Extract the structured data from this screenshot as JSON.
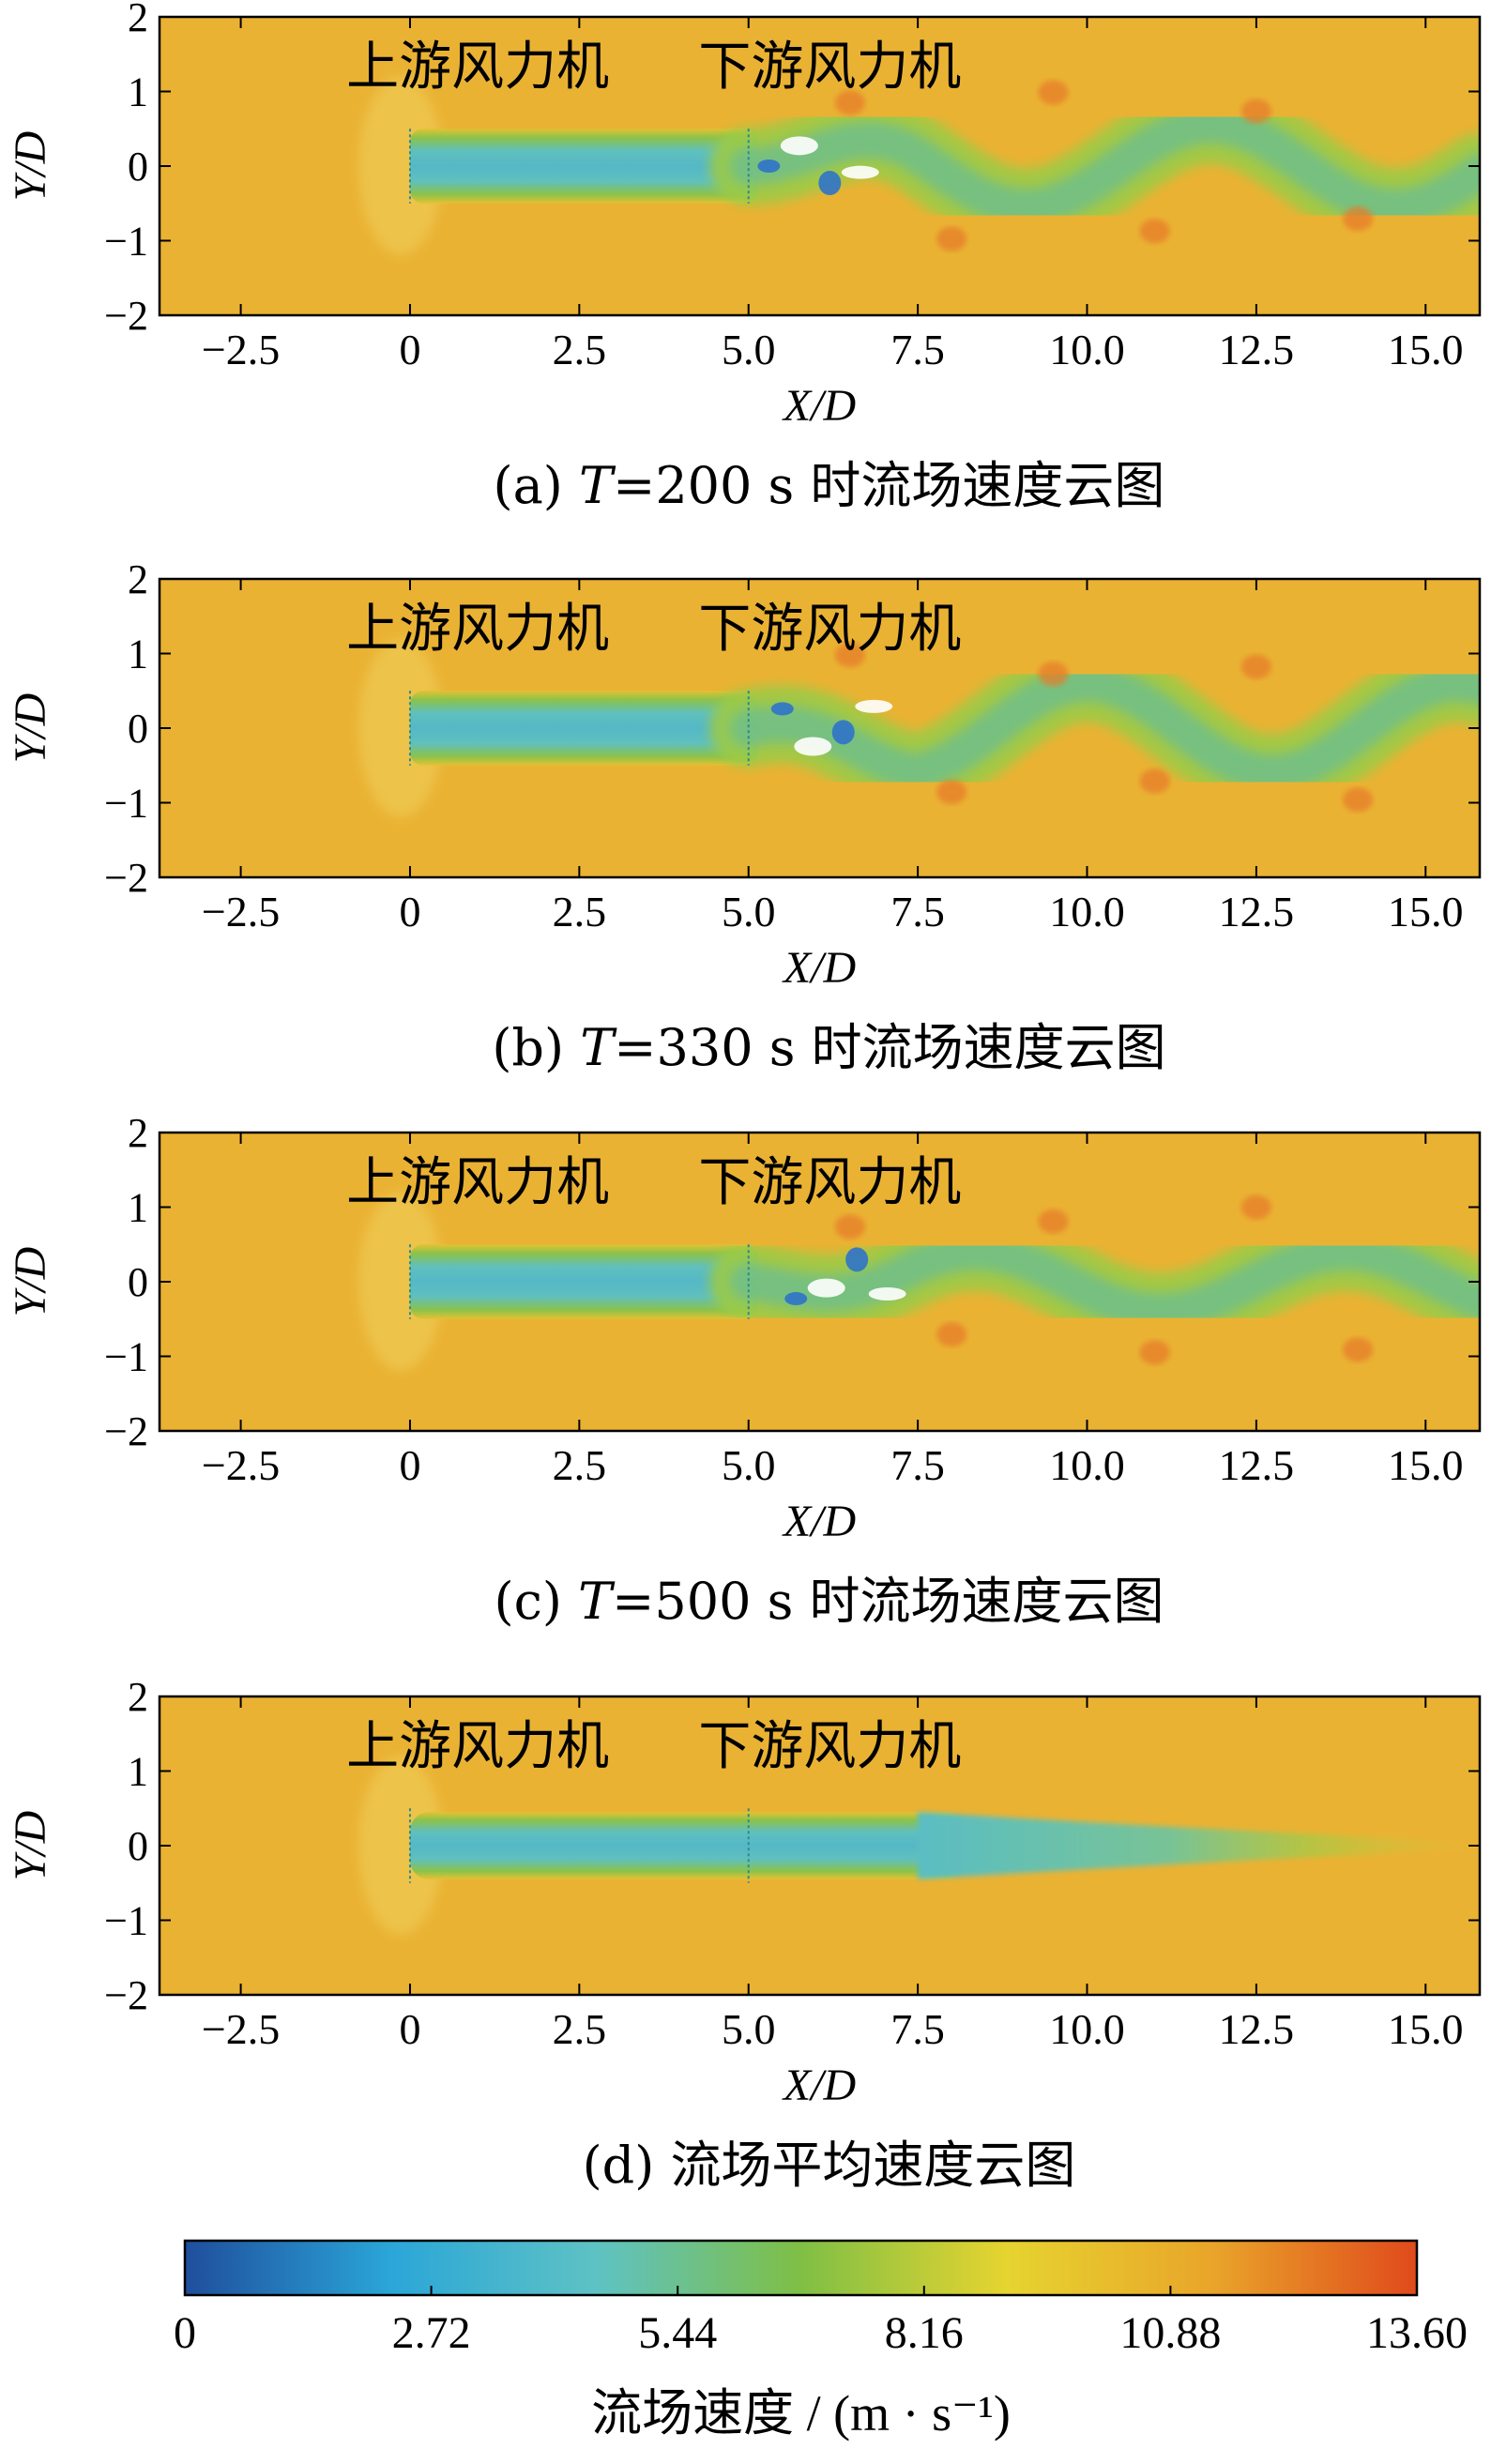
{
  "chart_data": [
    {
      "type": "heatmap",
      "panel": "(a)",
      "caption_prefix": "(a)",
      "caption_var": "T",
      "caption_rest": "=200 s 时流场速度云图",
      "xlabel": "X/D",
      "ylabel": "Y/D",
      "xlim": [
        -3.7,
        15.8
      ],
      "ylim": [
        -2,
        2
      ],
      "xticks": [
        "−2.5",
        "0",
        "2.5",
        "5.0",
        "7.5",
        "10.0",
        "12.5",
        "15.0"
      ],
      "xtick_values": [
        -2.5,
        0,
        2.5,
        5.0,
        7.5,
        10.0,
        12.5,
        15.0
      ],
      "yticks": [
        "2",
        "1",
        "0",
        "−1",
        "−2"
      ],
      "ytick_values": [
        2,
        1,
        0,
        -1,
        -2
      ],
      "annotations": [
        "上游风力机",
        "下游风力机"
      ],
      "annotation_x": [
        1.0,
        6.2
      ],
      "turbine_x": [
        0,
        5.0
      ],
      "wake_mode": "meander",
      "wake_phase": 0.0,
      "wake_amp": 0.55
    },
    {
      "type": "heatmap",
      "panel": "(b)",
      "caption_prefix": "(b)",
      "caption_var": "T",
      "caption_rest": "=330 s 时流场速度云图",
      "xlabel": "X/D",
      "ylabel": "Y/D",
      "xlim": [
        -3.7,
        15.8
      ],
      "ylim": [
        -2,
        2
      ],
      "xticks": [
        "−2.5",
        "0",
        "2.5",
        "5.0",
        "7.5",
        "10.0",
        "12.5",
        "15.0"
      ],
      "xtick_values": [
        -2.5,
        0,
        2.5,
        5.0,
        7.5,
        10.0,
        12.5,
        15.0
      ],
      "yticks": [
        "2",
        "1",
        "0",
        "−1",
        "−2"
      ],
      "ytick_values": [
        2,
        1,
        0,
        -1,
        -2
      ],
      "annotations": [
        "上游风力机",
        "下游风力机"
      ],
      "annotation_x": [
        1.0,
        6.2
      ],
      "turbine_x": [
        0,
        5.0
      ],
      "wake_mode": "meander",
      "wake_phase": 2.1,
      "wake_amp": 0.6
    },
    {
      "type": "heatmap",
      "panel": "(c)",
      "caption_prefix": "(c)",
      "caption_var": "T",
      "caption_rest": "=500 s 时流场速度云图",
      "xlabel": "X/D",
      "ylabel": "Y/D",
      "xlim": [
        -3.7,
        15.8
      ],
      "ylim": [
        -2,
        2
      ],
      "xticks": [
        "−2.5",
        "0",
        "2.5",
        "5.0",
        "7.5",
        "10.0",
        "12.5",
        "15.0"
      ],
      "xtick_values": [
        -2.5,
        0,
        2.5,
        5.0,
        7.5,
        10.0,
        12.5,
        15.0
      ],
      "yticks": [
        "2",
        "1",
        "0",
        "−1",
        "−2"
      ],
      "ytick_values": [
        2,
        1,
        0,
        -1,
        -2
      ],
      "annotations": [
        "上游风力机",
        "下游风力机"
      ],
      "annotation_x": [
        1.0,
        6.2
      ],
      "turbine_x": [
        0,
        5.0
      ],
      "wake_mode": "meander",
      "wake_phase": 4.0,
      "wake_amp": 0.4
    },
    {
      "type": "heatmap",
      "panel": "(d)",
      "caption_prefix": "(d)",
      "caption_var": "",
      "caption_rest": "流场平均速度云图",
      "xlabel": "X/D",
      "ylabel": "Y/D",
      "xlim": [
        -3.7,
        15.8
      ],
      "ylim": [
        -2,
        2
      ],
      "xticks": [
        "−2.5",
        "0",
        "2.5",
        "5.0",
        "7.5",
        "10.0",
        "12.5",
        "15.0"
      ],
      "xtick_values": [
        -2.5,
        0,
        2.5,
        5.0,
        7.5,
        10.0,
        12.5,
        15.0
      ],
      "yticks": [
        "2",
        "1",
        "0",
        "−1",
        "−2"
      ],
      "ytick_values": [
        2,
        1,
        0,
        -1,
        -2
      ],
      "annotations": [
        "上游风力机",
        "下游风力机"
      ],
      "annotation_x": [
        1.0,
        6.2
      ],
      "turbine_x": [
        0,
        5.0
      ],
      "wake_mode": "mean",
      "wake_phase": 0,
      "wake_amp": 0
    }
  ],
  "colorbar": {
    "min": 0,
    "max": 13.6,
    "ticks": [
      "0",
      "2.72",
      "5.44",
      "8.16",
      "10.88",
      "13.60"
    ],
    "tick_values": [
      0,
      2.72,
      5.44,
      8.16,
      10.88,
      13.6
    ],
    "label": "流场速度 / (m · s⁻¹)",
    "stops": [
      "#1f4e9c",
      "#2aa6d8",
      "#5ec2c4",
      "#7fbf45",
      "#e6d430",
      "#e9a52a",
      "#e04a1c"
    ]
  },
  "background_color": "#eab233"
}
